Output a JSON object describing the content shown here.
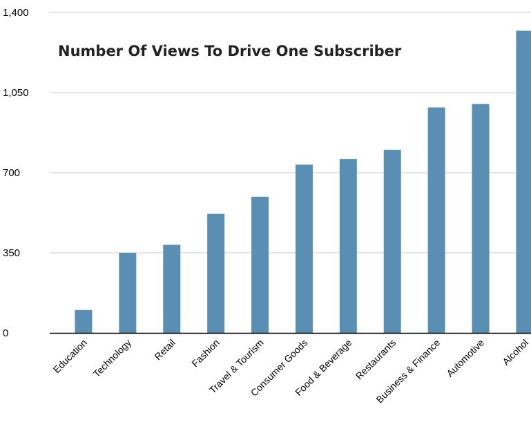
{
  "chart_data": {
    "type": "bar",
    "title": "Number Of Views To Drive One Subscriber",
    "xlabel": "",
    "ylabel": "",
    "categories": [
      "Education",
      "Technology",
      "Retail",
      "Fashion",
      "Travel & Tourism",
      "Consumer Goods",
      "Food & Beverage",
      "Restaurants",
      "Business & Finance",
      "Automotive",
      "Alcohol"
    ],
    "values": [
      100,
      350,
      385,
      520,
      595,
      735,
      760,
      800,
      985,
      1000,
      1320
    ],
    "ylim": [
      0,
      1400
    ],
    "yticks": [
      0,
      350,
      700,
      1050,
      1400
    ],
    "ytick_labels": [
      "0",
      "350",
      "700",
      "1,050",
      "1,400"
    ],
    "grid": true,
    "legend": "none",
    "bar_color": "#5a8fb3",
    "grid_color": "#c8c8c8",
    "axis_color": "#000000"
  }
}
